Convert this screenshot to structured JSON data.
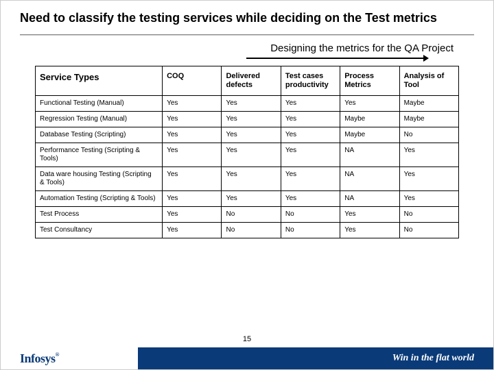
{
  "title": "Need to classify the testing services while deciding on the Test metrics",
  "subtitle": "Designing the metrics for the QA Project",
  "page_number": "15",
  "logo_text": "Infosys",
  "logo_mark": "®",
  "tagline": "Win in the flat world",
  "colors": {
    "brand_blue": "#0a3a78",
    "border": "#000000",
    "background": "#ffffff"
  },
  "table": {
    "columns": [
      "Service Types",
      "COQ",
      "Delivered defects",
      "Test cases productivity",
      "Process Metrics",
      "Analysis of Tool"
    ],
    "rows": [
      [
        "Functional Testing (Manual)",
        "Yes",
        "Yes",
        "Yes",
        "Yes",
        "Maybe"
      ],
      [
        "Regression Testing (Manual)",
        "Yes",
        "Yes",
        "Yes",
        "Maybe",
        "Maybe"
      ],
      [
        "Database Testing (Scripting)",
        "Yes",
        "Yes",
        "Yes",
        "Maybe",
        "No"
      ],
      [
        "Performance Testing (Scripting & Tools)",
        "Yes",
        "Yes",
        "Yes",
        "NA",
        "Yes"
      ],
      [
        "Data ware housing Testing (Scripting & Tools)",
        "Yes",
        "Yes",
        "Yes",
        "NA",
        "Yes"
      ],
      [
        "Automation Testing (Scripting & Tools)",
        "Yes",
        "Yes",
        "Yes",
        "NA",
        "Yes"
      ],
      [
        "Test Process",
        "Yes",
        "No",
        "No",
        "Yes",
        "No"
      ],
      [
        "Test Consultancy",
        "Yes",
        "No",
        "No",
        "Yes",
        "No"
      ]
    ]
  }
}
